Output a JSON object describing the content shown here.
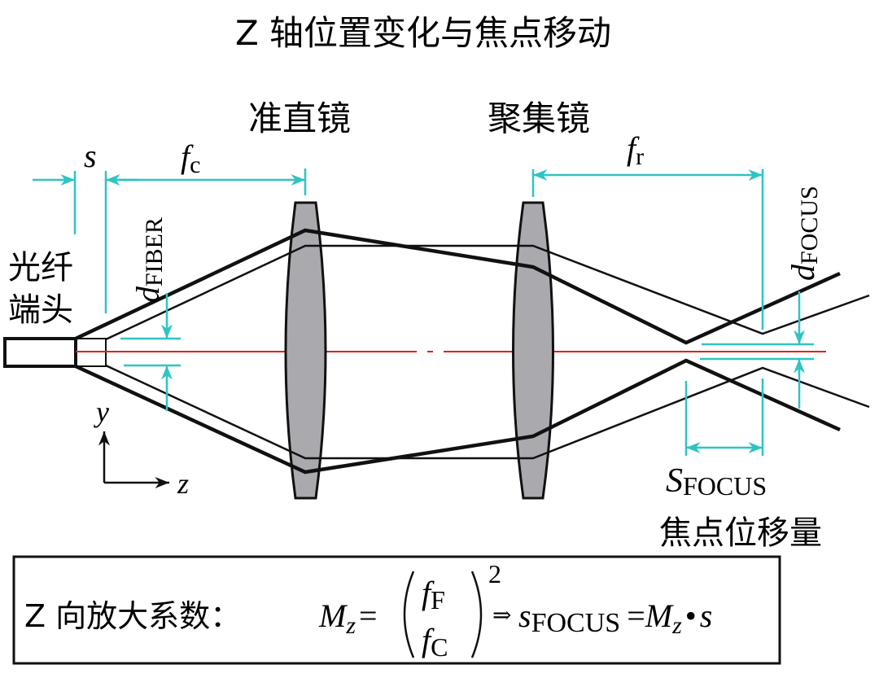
{
  "title": "Z 轴位置变化与焦点移动",
  "lenses": {
    "collimator_label": "准直镜",
    "focusing_label": "聚集镜"
  },
  "fiber": {
    "label_line1": "光纤",
    "label_line2": "端头"
  },
  "dimensions": {
    "s": "s",
    "fc_main": "f",
    "fc_sub": "c",
    "fr_main": "f",
    "fr_sub": "r",
    "d_fiber_main": "d",
    "d_fiber_sub": "FIBER",
    "d_focus_main": "d",
    "d_focus_sub": "FOCUS",
    "s_focus_main": "S",
    "s_focus_sub": "FOCUS",
    "s_focus_caption": "焦点位移量"
  },
  "axes": {
    "y": "y",
    "z": "z"
  },
  "formula": {
    "prefix": "Z 向放大系数：",
    "mz_main": "M",
    "mz_sub": "z",
    "equals": "=",
    "num_main": "f",
    "num_sub": "F",
    "den_main": "f",
    "den_sub": "C",
    "exponent": "2",
    "implies": "⇒",
    "sfocus_main": "s",
    "sfocus_sub": "FOCUS",
    "equals2": "=",
    "mz2_main": "M",
    "mz2_sub": "z",
    "dot": "•",
    "s": "s"
  },
  "colors": {
    "dimension": "#2ec4c4",
    "axis": "#e02020",
    "lens_fill": "#a9a9ae",
    "beam": "#111111"
  }
}
